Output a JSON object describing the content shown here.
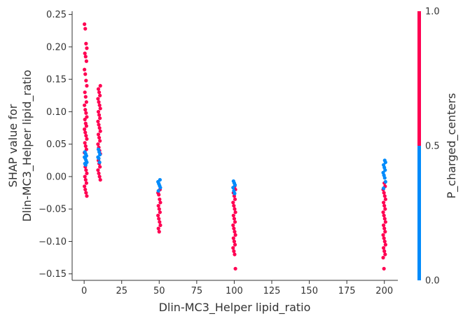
{
  "chart_data": {
    "type": "scatter",
    "xlabel": "Dlin-MC3_Helper lipid_ratio",
    "ylabel_lines": [
      "SHAP value for",
      "Dlin-MC3_Helper lipid_ratio"
    ],
    "xlim": [
      -8,
      209
    ],
    "ylim": [
      -0.16,
      0.255
    ],
    "xticks": [
      0,
      25,
      50,
      75,
      100,
      125,
      150,
      175,
      200
    ],
    "xtick_labels": [
      "0",
      "25",
      "50",
      "75",
      "100",
      "125",
      "150",
      "175",
      "200"
    ],
    "yticks": [
      -0.15,
      -0.1,
      -0.05,
      0.0,
      0.05,
      0.1,
      0.15,
      0.2,
      0.25
    ],
    "ytick_labels": [
      "−0.15",
      "−0.10",
      "−0.05",
      "0.00",
      "0.05",
      "0.10",
      "0.15",
      "0.20",
      "0.25"
    ],
    "grid": false,
    "colorbar": {
      "label": "P_charged_centers",
      "ticks": [
        0.0,
        0.5,
        1.0
      ],
      "tick_labels": [
        "0.0",
        "0.5",
        "1.0"
      ],
      "low_color": "#008bfb",
      "high_color": "#ff0052"
    },
    "series": [
      {
        "x": 1,
        "high_values": [
          0.235,
          0.228,
          0.205,
          0.198,
          0.19,
          0.185,
          0.178,
          0.165,
          0.158,
          0.148,
          0.14,
          0.13,
          0.123,
          0.115,
          0.11,
          0.103,
          0.098,
          0.092,
          0.088,
          0.082,
          0.078,
          0.073,
          0.068,
          0.063,
          0.058,
          0.052,
          0.047,
          0.042,
          0.037,
          0.015,
          0.01,
          0.005,
          0.0,
          -0.005,
          -0.01,
          -0.015,
          -0.02,
          -0.025,
          -0.03
        ],
        "low_values": [
          0.038,
          0.035,
          0.032,
          0.03,
          0.028,
          0.025,
          0.022,
          0.02,
          0.018
        ]
      },
      {
        "x": 10,
        "high_values": [
          0.14,
          0.135,
          0.13,
          0.125,
          0.12,
          0.115,
          0.11,
          0.105,
          0.1,
          0.095,
          0.09,
          0.085,
          0.08,
          0.075,
          0.07,
          0.065,
          0.06,
          0.055,
          0.05,
          0.045,
          0.04,
          0.035,
          0.025,
          0.02,
          0.015,
          0.01,
          0.005,
          0.0,
          -0.005
        ],
        "low_values": [
          0.042,
          0.038,
          0.034,
          0.03,
          0.028,
          0.022
        ]
      },
      {
        "x": 50,
        "high_values": [
          -0.02,
          -0.025,
          -0.028,
          -0.035,
          -0.04,
          -0.045,
          -0.05,
          -0.055,
          -0.06,
          -0.065,
          -0.07,
          -0.075,
          -0.08,
          -0.085
        ],
        "low_values": [
          -0.005,
          -0.008,
          -0.011,
          -0.014,
          -0.017,
          -0.022
        ]
      },
      {
        "x": 100,
        "high_values": [
          -0.015,
          -0.02,
          -0.025,
          -0.03,
          -0.035,
          -0.04,
          -0.045,
          -0.05,
          -0.055,
          -0.06,
          -0.065,
          -0.07,
          -0.075,
          -0.08,
          -0.085,
          -0.09,
          -0.095,
          -0.1,
          -0.105,
          -0.11,
          -0.115,
          -0.12,
          -0.142
        ],
        "low_values": [
          -0.007,
          -0.01,
          -0.013,
          -0.017,
          -0.022,
          -0.026
        ]
      },
      {
        "x": 200,
        "high_values": [
          -0.01,
          -0.015,
          -0.02,
          -0.025,
          -0.03,
          -0.035,
          -0.04,
          -0.045,
          -0.05,
          -0.055,
          -0.06,
          -0.065,
          -0.07,
          -0.075,
          -0.08,
          -0.085,
          -0.09,
          -0.095,
          -0.1,
          -0.105,
          -0.11,
          -0.115,
          -0.12,
          -0.125,
          -0.142
        ],
        "low_values": [
          0.025,
          0.022,
          0.018,
          0.014,
          0.01,
          0.006,
          0.002,
          -0.002,
          -0.008,
          -0.018
        ]
      }
    ]
  }
}
